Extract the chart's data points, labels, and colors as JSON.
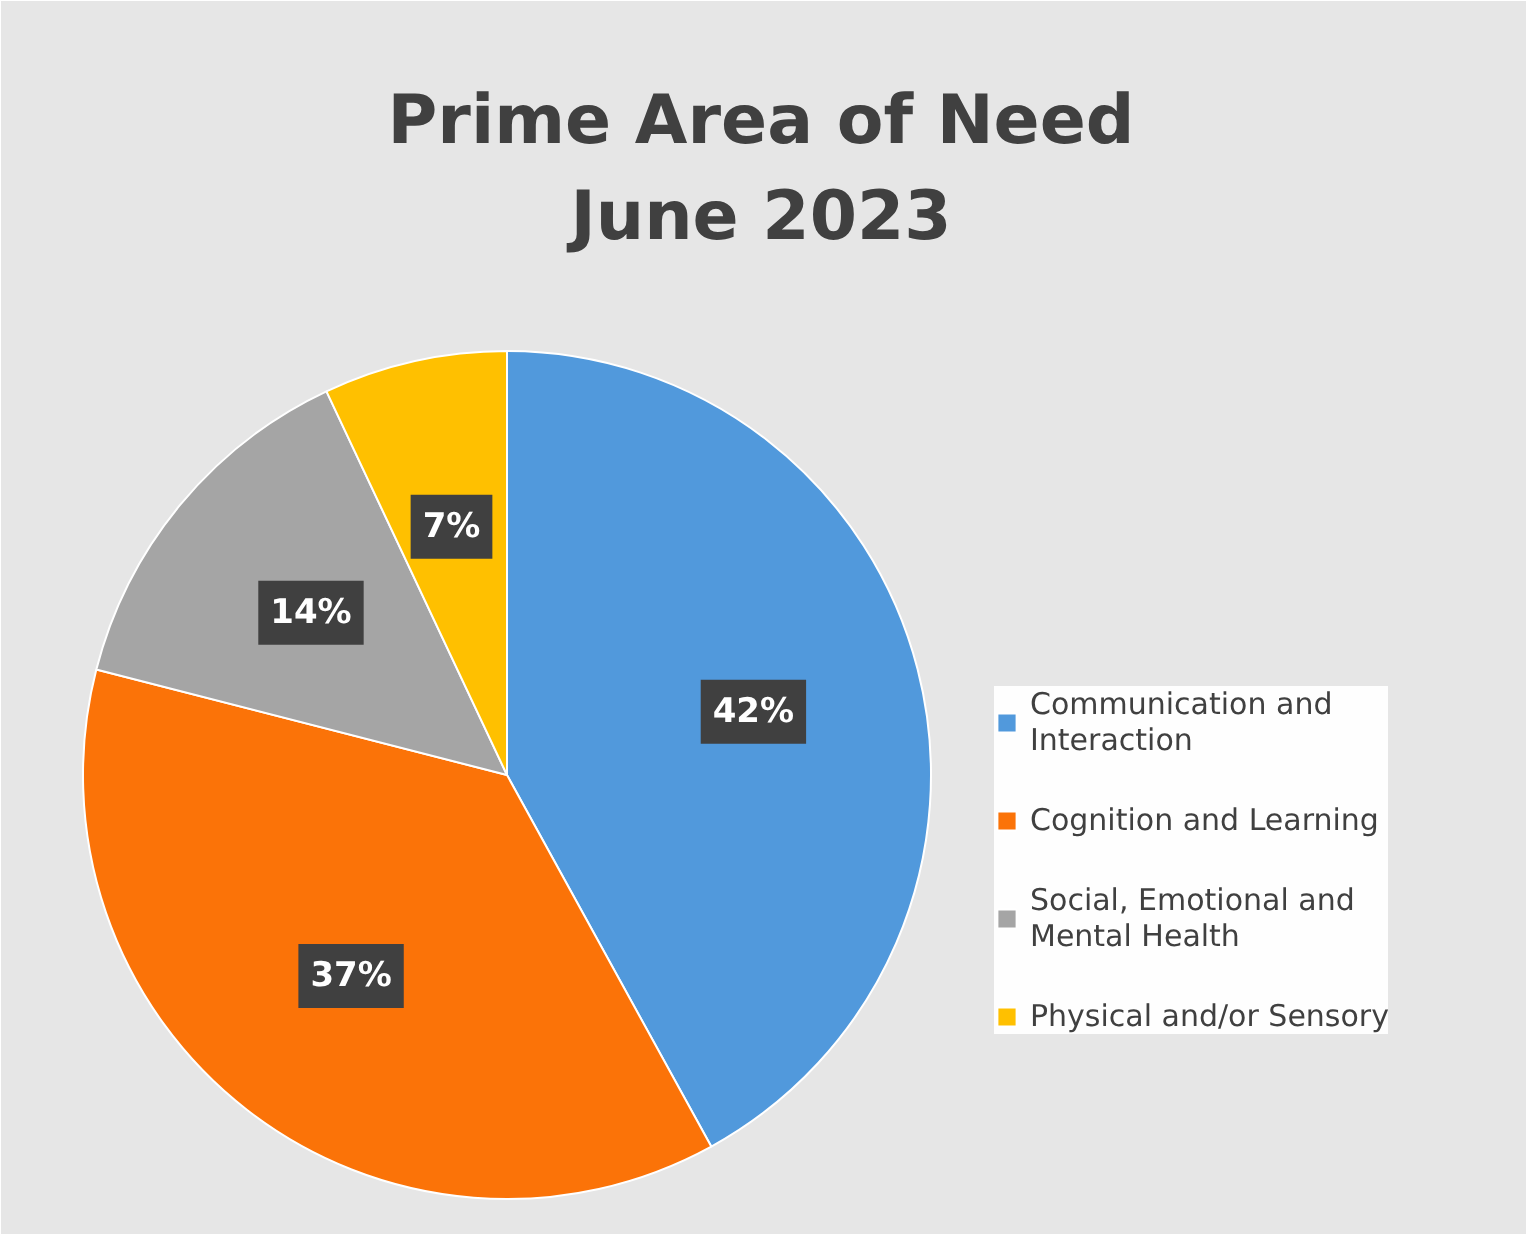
{
  "chart_data": {
    "type": "pie",
    "title": "Prime Area of Need June 2023",
    "categories": [
      "Communication and Interaction",
      "Cognition and Learning",
      "Social, Emotional and Mental Health",
      "Physical and/or Sensory"
    ],
    "values": [
      42,
      37,
      14,
      7
    ],
    "colors": [
      "#5199dc",
      "#fb7308",
      "#a5a5a5",
      "#ffc000"
    ],
    "value_labels": [
      "42%",
      "37%",
      "14%",
      "7%"
    ],
    "legend": "right"
  }
}
